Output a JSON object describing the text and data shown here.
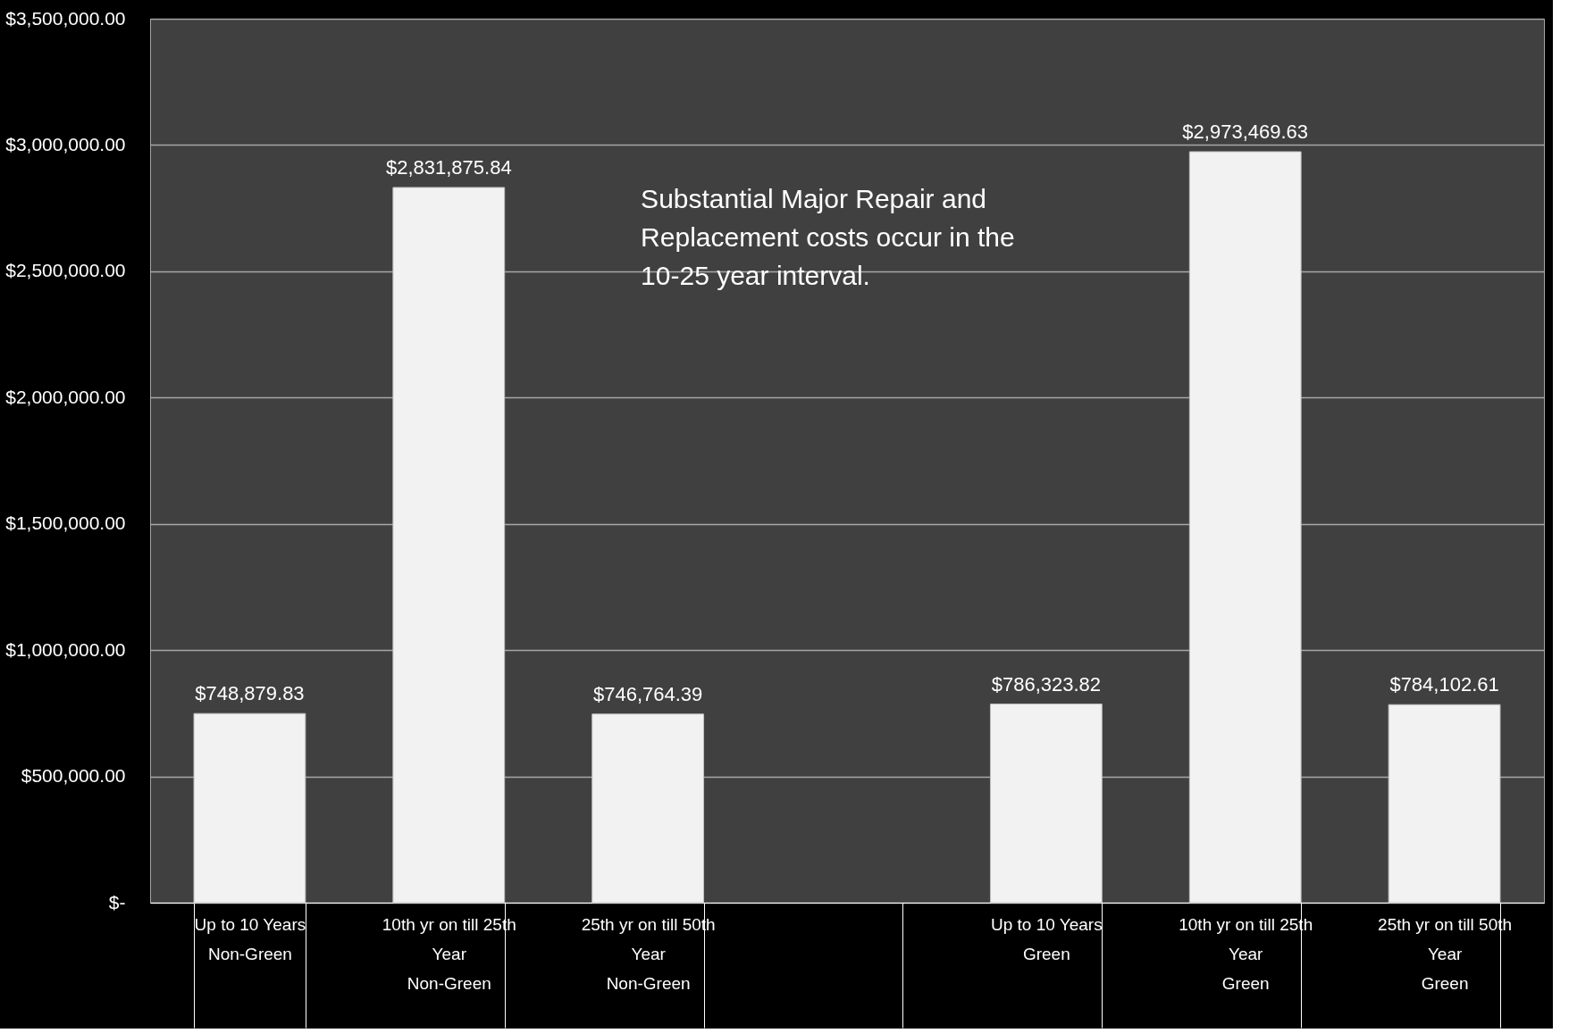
{
  "chart_data": {
    "type": "bar",
    "categories": [
      "Up to 10 Years\n\nNon-Green",
      "10th yr on till  25th\nYear\n\nNon-Green",
      "25th yr on till 50th\nYear\n\nNon-Green",
      null,
      "Up to 10 Years\n\nGreen",
      "10th yr on till  25th\nYear\n\nGreen",
      "25th yr on till 50th\nYear\n\nGreen"
    ],
    "values": [
      748879.83,
      2831875.84,
      746764.39,
      null,
      786323.82,
      2973469.63,
      784102.61
    ],
    "value_labels": [
      "$748,879.83",
      "$2,831,875.84",
      "$746,764.39",
      null,
      "$786,323.82",
      "$2,973,469.63",
      "$784,102.61"
    ],
    "color": "#f2f2f2",
    "ylim": [
      0,
      3500000
    ],
    "yticks": [
      {
        "value": 0,
        "label": "$-"
      },
      {
        "value": 500000,
        "label": "$500,000.00"
      },
      {
        "value": 1000000,
        "label": "$1,000,000.00"
      },
      {
        "value": 1500000,
        "label": "$1,500,000.00"
      },
      {
        "value": 2000000,
        "label": "$2,000,000.00"
      },
      {
        "value": 2500000,
        "label": "$2,500,000.00"
      },
      {
        "value": 3000000,
        "label": "$3,000,000.00"
      },
      {
        "value": 3500000,
        "label": "$3,500,000.00"
      }
    ],
    "grid": "y",
    "annotations": [
      "Substantial  Major Repair and\nReplacement costs occur in the\n10-25 year interval."
    ]
  }
}
